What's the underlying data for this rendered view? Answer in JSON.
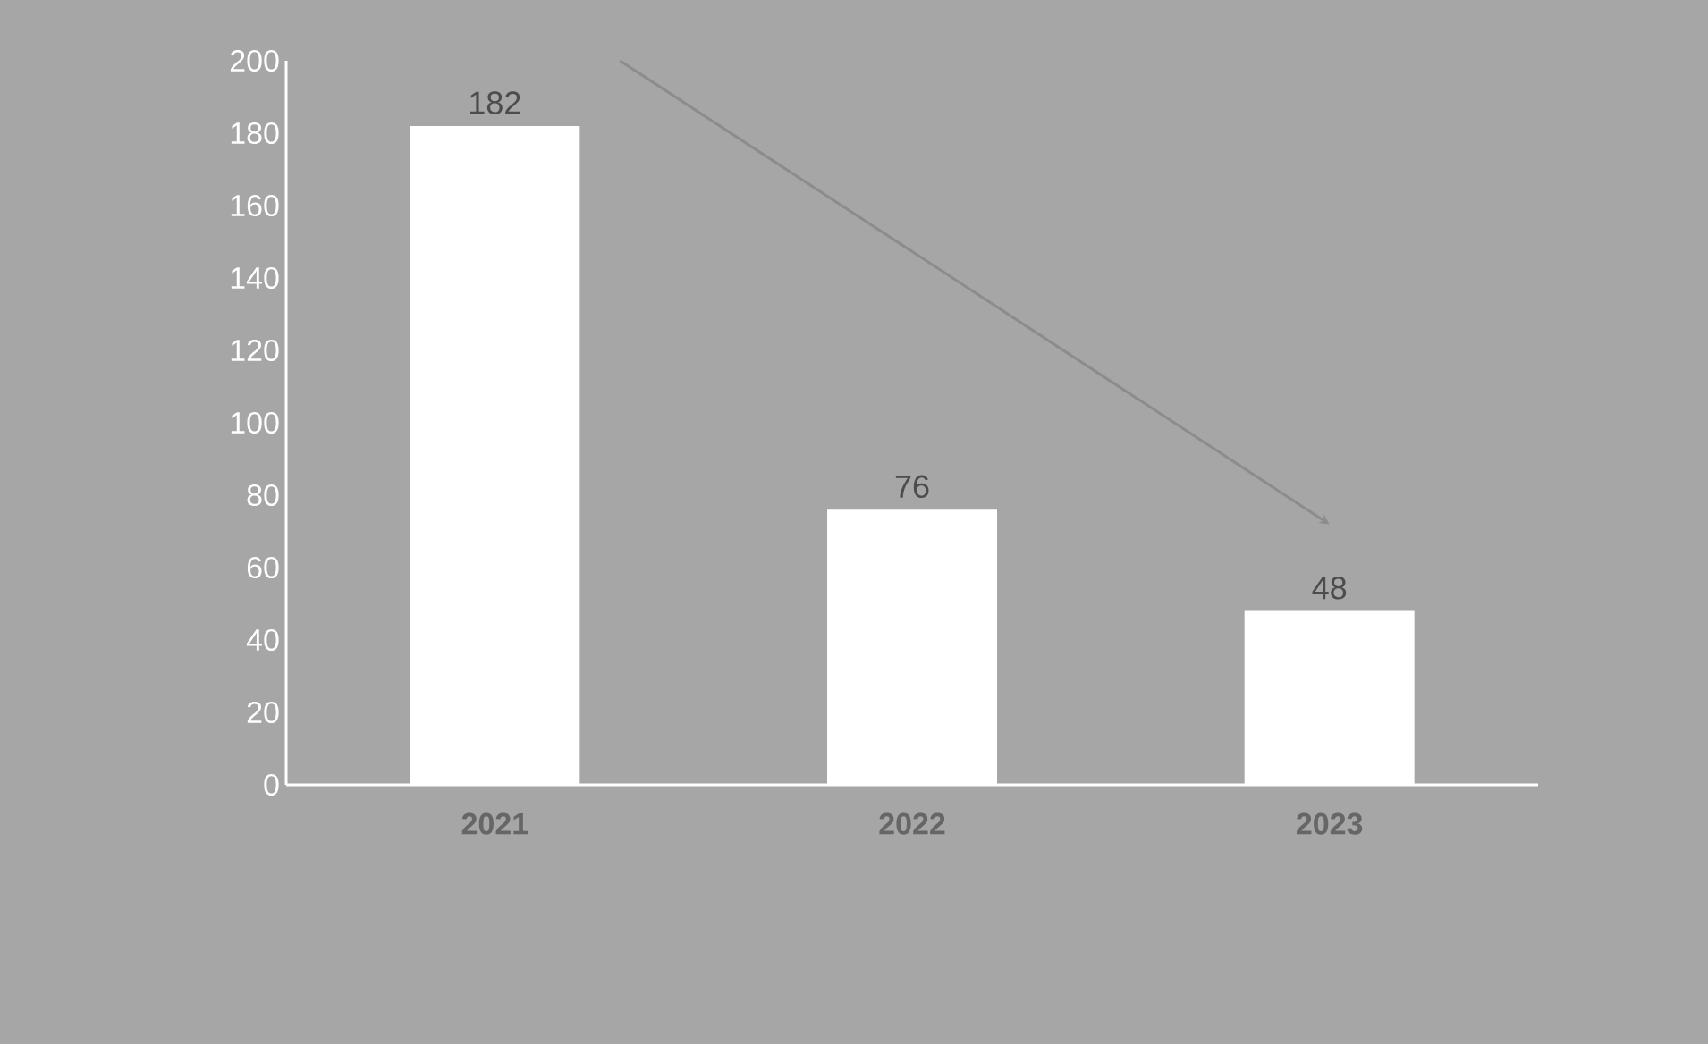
{
  "chart_data": {
    "type": "bar",
    "categories": [
      "2021",
      "2022",
      "2023"
    ],
    "values": [
      182,
      76,
      48
    ],
    "color": "#ffffff",
    "ylim": [
      0,
      200
    ],
    "yticks": [
      0,
      20,
      40,
      60,
      80,
      100,
      120,
      140,
      160,
      180,
      200
    ],
    "data_labels": true
  }
}
